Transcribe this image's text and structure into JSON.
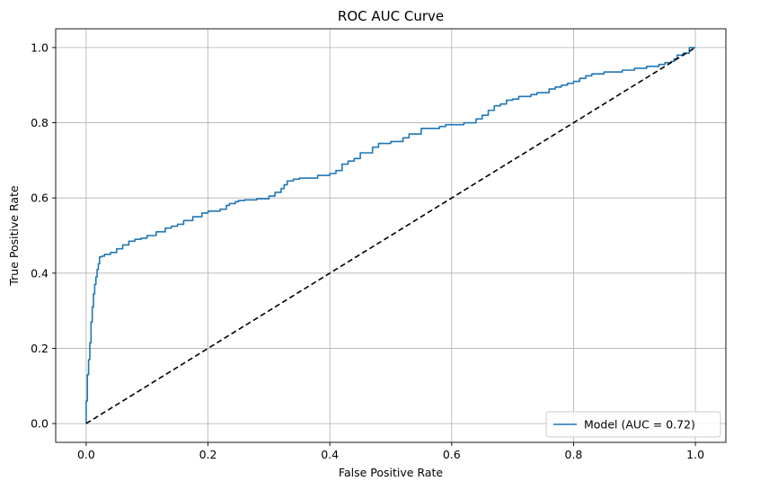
{
  "chart_data": {
    "type": "line",
    "title": "ROC AUC Curve",
    "xlabel": "False Positive Rate",
    "ylabel": "True Positive Rate",
    "xlim": [
      -0.05,
      1.05
    ],
    "ylim": [
      -0.05,
      1.05
    ],
    "xticks": [
      0.0,
      0.2,
      0.4,
      0.6,
      0.8,
      1.0
    ],
    "xtick_labels": [
      "0.0",
      "0.2",
      "0.4",
      "0.6",
      "0.8",
      "1.0"
    ],
    "yticks": [
      0.0,
      0.2,
      0.4,
      0.6,
      0.8,
      1.0
    ],
    "ytick_labels": [
      "0.0",
      "0.2",
      "0.4",
      "0.6",
      "0.8",
      "1.0"
    ],
    "grid": true,
    "legend_position": "lower-right",
    "series": [
      {
        "name": "Model (AUC = 0.72)",
        "color": "#1f77b4",
        "style": "solid",
        "x": [
          0.0,
          0.0,
          0.002,
          0.002,
          0.004,
          0.004,
          0.006,
          0.006,
          0.008,
          0.008,
          0.01,
          0.01,
          0.012,
          0.012,
          0.014,
          0.014,
          0.016,
          0.016,
          0.018,
          0.018,
          0.02,
          0.02,
          0.022,
          0.022,
          0.025,
          0.025,
          0.03,
          0.03,
          0.04,
          0.04,
          0.05,
          0.05,
          0.06,
          0.06,
          0.07,
          0.07,
          0.08,
          0.08,
          0.09,
          0.09,
          0.1,
          0.1,
          0.115,
          0.115,
          0.13,
          0.13,
          0.14,
          0.14,
          0.15,
          0.15,
          0.16,
          0.16,
          0.175,
          0.175,
          0.19,
          0.19,
          0.2,
          0.2,
          0.22,
          0.22,
          0.23,
          0.23,
          0.235,
          0.235,
          0.245,
          0.245,
          0.25,
          0.25,
          0.26,
          0.26,
          0.28,
          0.28,
          0.3,
          0.3,
          0.31,
          0.31,
          0.32,
          0.32,
          0.325,
          0.325,
          0.33,
          0.33,
          0.34,
          0.34,
          0.35,
          0.35,
          0.38,
          0.38,
          0.4,
          0.4,
          0.41,
          0.41,
          0.42,
          0.42,
          0.43,
          0.43,
          0.44,
          0.44,
          0.45,
          0.45,
          0.47,
          0.47,
          0.48,
          0.48,
          0.5,
          0.5,
          0.52,
          0.52,
          0.53,
          0.53,
          0.55,
          0.55,
          0.58,
          0.58,
          0.59,
          0.59,
          0.62,
          0.62,
          0.64,
          0.64,
          0.65,
          0.65,
          0.66,
          0.66,
          0.67,
          0.67,
          0.68,
          0.68,
          0.69,
          0.69,
          0.7,
          0.7,
          0.71,
          0.71,
          0.73,
          0.73,
          0.74,
          0.74,
          0.76,
          0.76,
          0.77,
          0.77,
          0.78,
          0.78,
          0.79,
          0.79,
          0.8,
          0.8,
          0.81,
          0.81,
          0.82,
          0.82,
          0.83,
          0.83,
          0.85,
          0.85,
          0.88,
          0.88,
          0.9,
          0.9,
          0.92,
          0.92,
          0.94,
          0.94,
          0.95,
          0.95,
          0.96,
          0.96,
          0.965,
          0.965,
          0.97,
          0.97,
          0.98,
          0.98,
          0.99,
          0.99,
          1.0
        ],
        "y": [
          0.0,
          0.06,
          0.06,
          0.13,
          0.13,
          0.17,
          0.17,
          0.215,
          0.215,
          0.27,
          0.27,
          0.31,
          0.31,
          0.345,
          0.345,
          0.37,
          0.37,
          0.39,
          0.39,
          0.41,
          0.41,
          0.425,
          0.425,
          0.443,
          0.443,
          0.445,
          0.445,
          0.45,
          0.45,
          0.455,
          0.455,
          0.465,
          0.465,
          0.475,
          0.475,
          0.485,
          0.485,
          0.49,
          0.49,
          0.493,
          0.493,
          0.5,
          0.5,
          0.51,
          0.51,
          0.52,
          0.52,
          0.525,
          0.525,
          0.53,
          0.53,
          0.54,
          0.54,
          0.55,
          0.55,
          0.56,
          0.56,
          0.565,
          0.565,
          0.57,
          0.57,
          0.58,
          0.58,
          0.585,
          0.585,
          0.59,
          0.59,
          0.593,
          0.593,
          0.595,
          0.595,
          0.598,
          0.598,
          0.605,
          0.605,
          0.615,
          0.615,
          0.625,
          0.625,
          0.635,
          0.635,
          0.645,
          0.645,
          0.65,
          0.65,
          0.653,
          0.653,
          0.66,
          0.66,
          0.665,
          0.665,
          0.673,
          0.673,
          0.69,
          0.69,
          0.698,
          0.698,
          0.705,
          0.705,
          0.72,
          0.72,
          0.735,
          0.735,
          0.745,
          0.745,
          0.75,
          0.75,
          0.76,
          0.76,
          0.77,
          0.77,
          0.785,
          0.785,
          0.79,
          0.79,
          0.795,
          0.795,
          0.8,
          0.8,
          0.81,
          0.81,
          0.82,
          0.82,
          0.833,
          0.833,
          0.845,
          0.845,
          0.85,
          0.85,
          0.86,
          0.86,
          0.863,
          0.863,
          0.87,
          0.87,
          0.875,
          0.875,
          0.88,
          0.88,
          0.89,
          0.89,
          0.895,
          0.895,
          0.9,
          0.9,
          0.905,
          0.905,
          0.91,
          0.91,
          0.918,
          0.918,
          0.925,
          0.925,
          0.93,
          0.93,
          0.935,
          0.935,
          0.94,
          0.94,
          0.945,
          0.945,
          0.95,
          0.95,
          0.955,
          0.955,
          0.96,
          0.96,
          0.963,
          0.963,
          0.97,
          0.97,
          0.98,
          0.98,
          0.985,
          0.985,
          1.0,
          1.0
        ]
      },
      {
        "color": "#000000",
        "style": "dashed",
        "x": [
          0.0,
          1.0
        ],
        "y": [
          0.0,
          1.0
        ]
      }
    ]
  }
}
